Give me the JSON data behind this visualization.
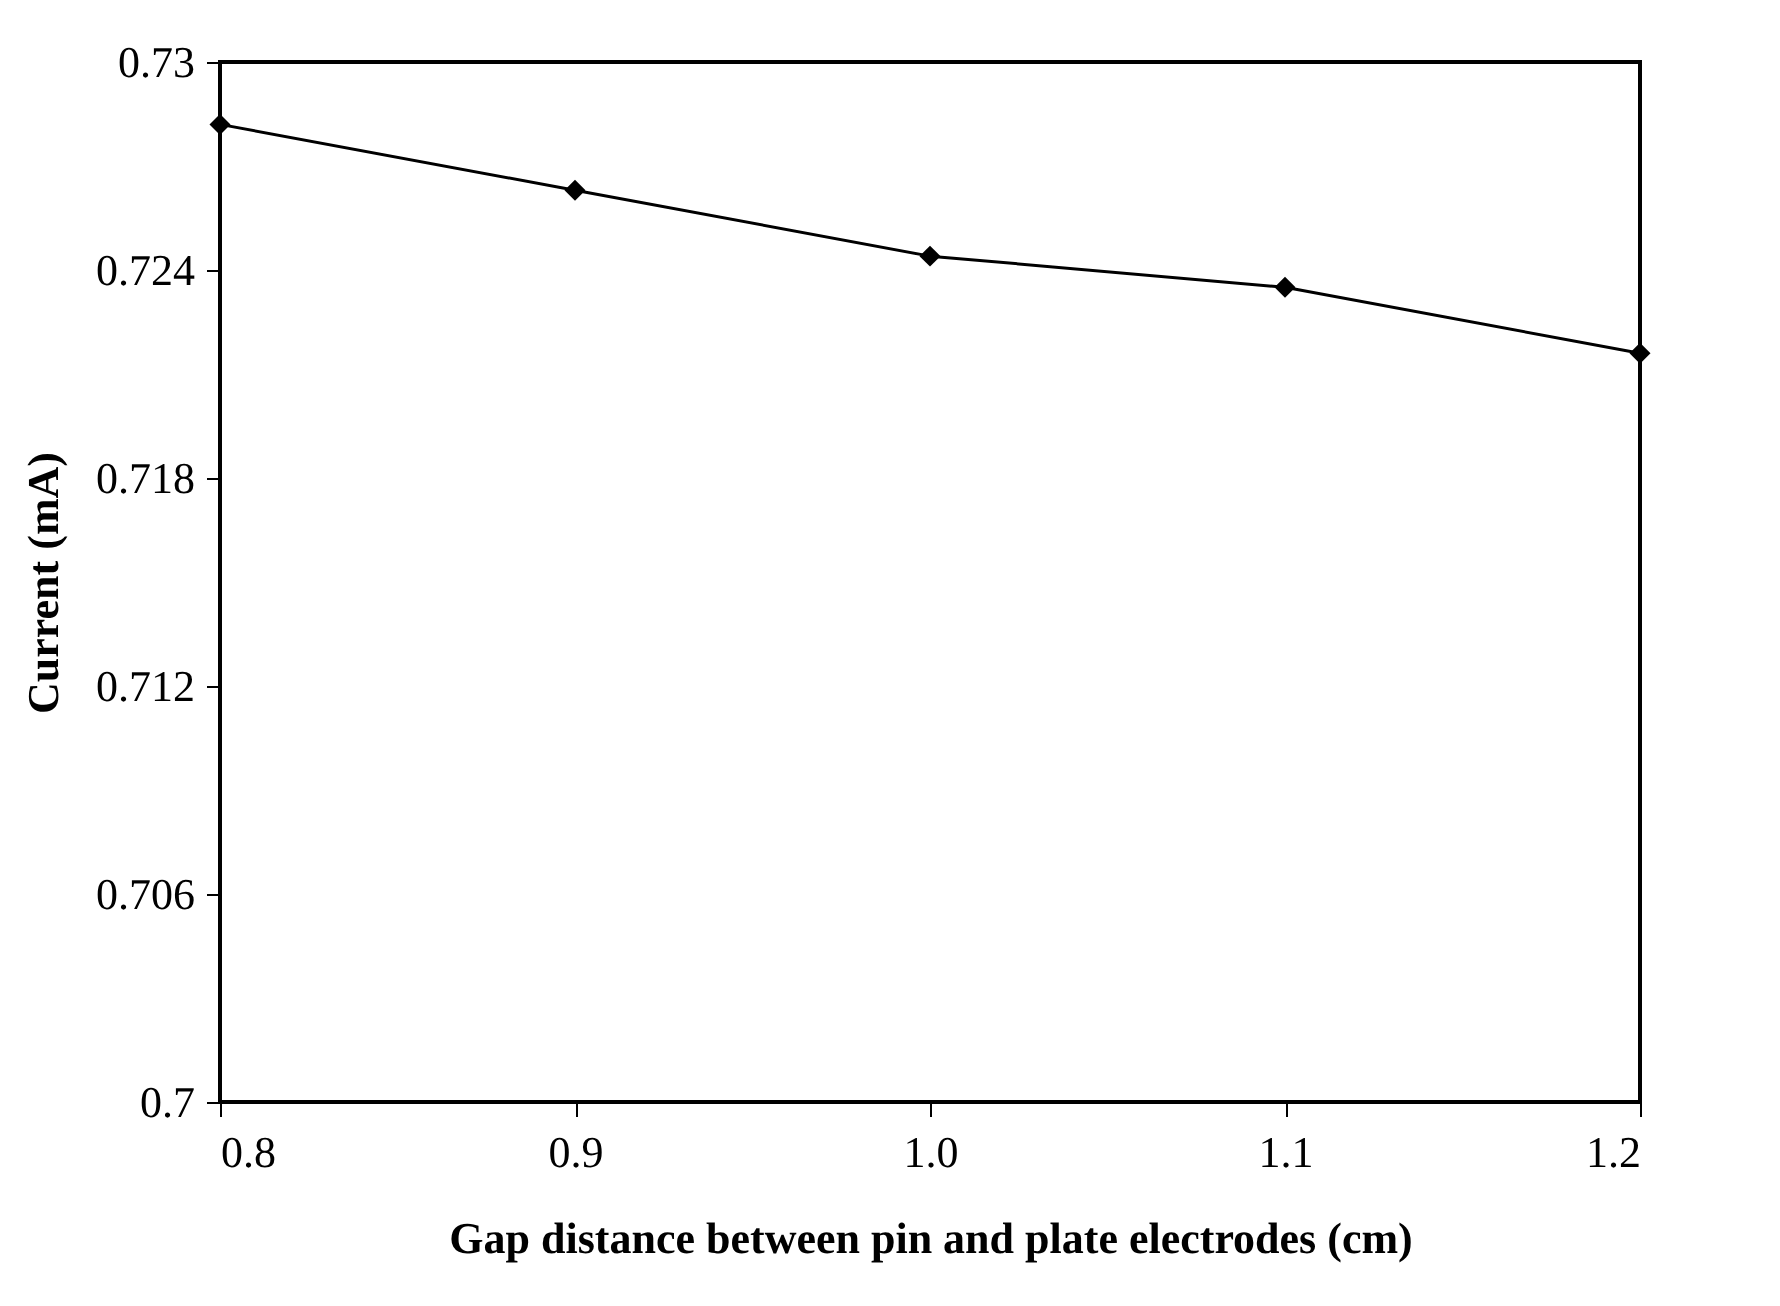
{
  "chart_data": {
    "type": "line",
    "xlabel": "Gap distance between pin and plate electrodes (cm)",
    "ylabel": "Current (mA)",
    "x": [
      0.8,
      0.9,
      1.0,
      1.1,
      1.2
    ],
    "series": [
      {
        "color": "#000000",
        "values": [
          0.7282,
          0.7263,
          0.7244,
          0.7235,
          0.7216
        ]
      }
    ],
    "xlim": [
      0.8,
      1.2
    ],
    "xticks": [
      0.8,
      0.9,
      {
        "value": 1.0,
        "label": "1.0"
      },
      1.1,
      1.2
    ],
    "ylim": [
      0.7,
      0.73
    ],
    "yticks": [
      0.7,
      0.706,
      0.712,
      0.718,
      0.724,
      0.73
    ],
    "marker": "diamond",
    "line_style": "solid",
    "grid": false,
    "legend": false
  }
}
